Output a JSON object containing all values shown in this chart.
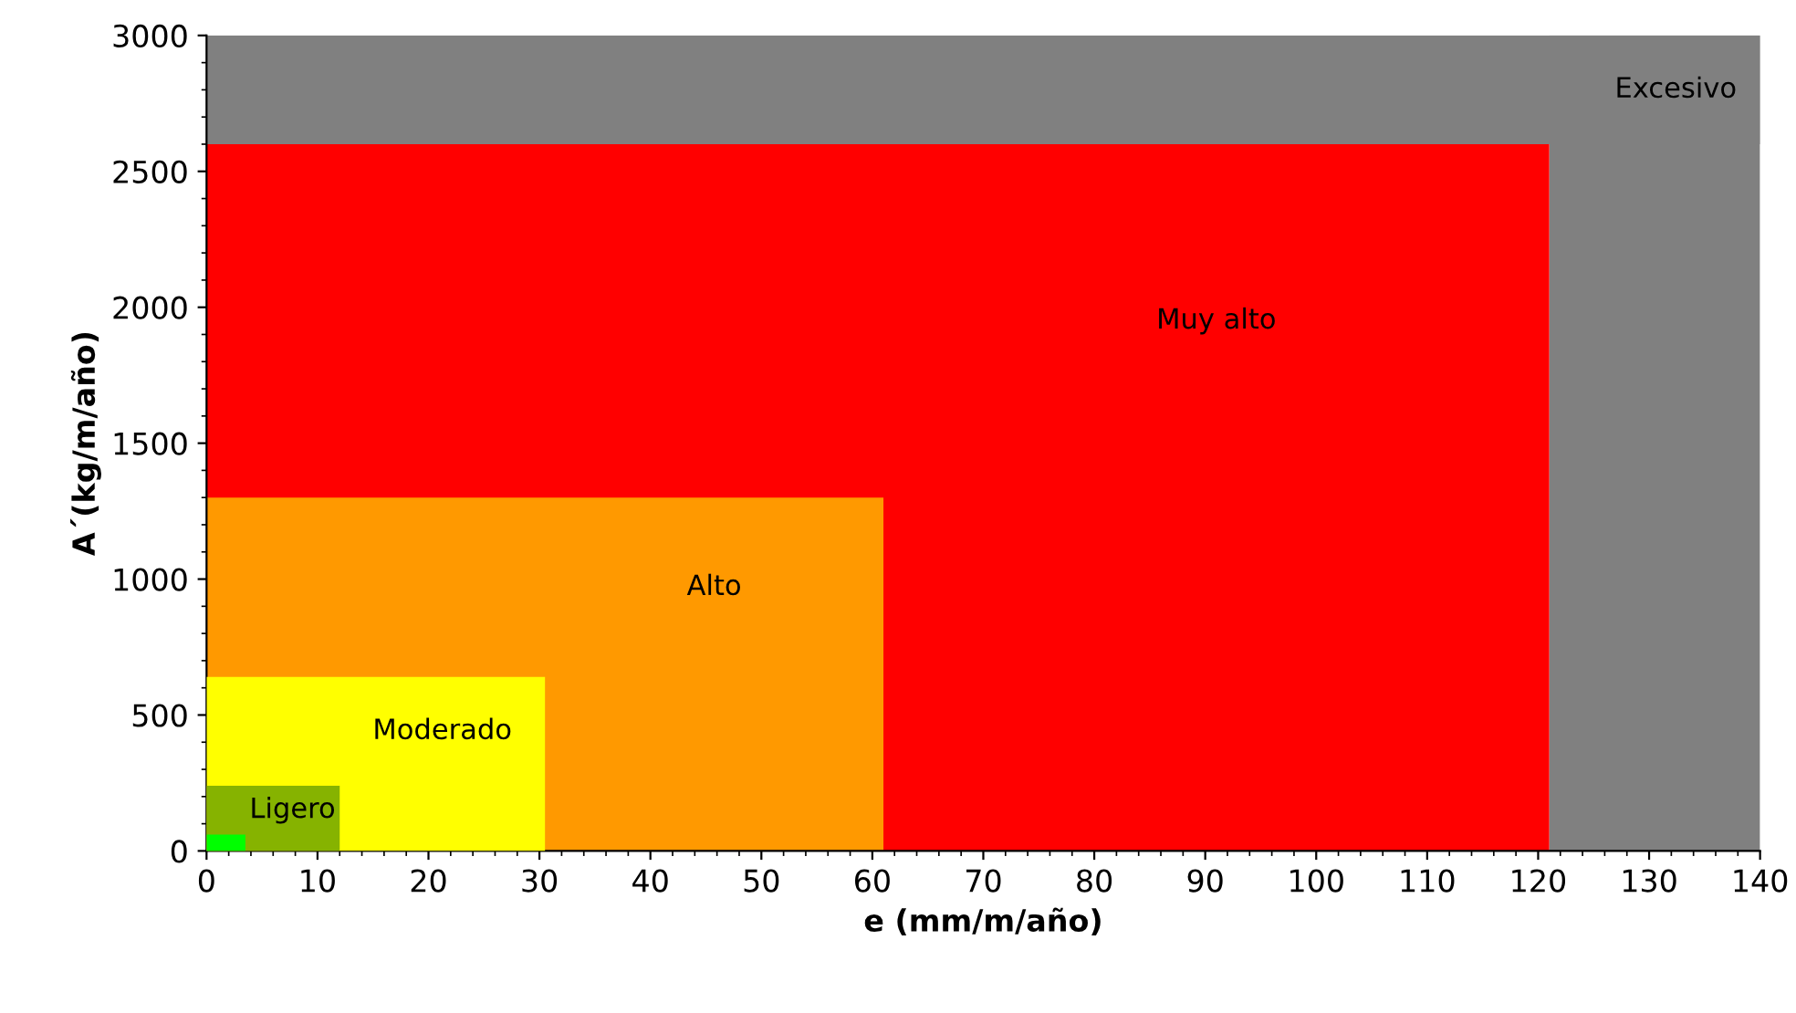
{
  "chart_data": {
    "type": "area",
    "xlabel": "e (mm/m/año)",
    "ylabel": "A´(kg/m/año)",
    "xlim": [
      0,
      140
    ],
    "ylim": [
      0,
      3000
    ],
    "xticks": [
      0,
      10,
      20,
      30,
      40,
      50,
      60,
      70,
      80,
      90,
      100,
      110,
      120,
      130,
      140
    ],
    "yticks": [
      0,
      500,
      1000,
      1500,
      2000,
      2500,
      3000
    ],
    "grid": false,
    "bands": [
      {
        "axis": "y",
        "from": 2600,
        "to": 3000,
        "label": "Excesivo",
        "color": "#808080"
      },
      {
        "axis": "x",
        "from": 121,
        "to": 140,
        "color": "#808080"
      }
    ],
    "series": [
      {
        "name": "Muy alto",
        "color": "#ff0000",
        "x": [
          0,
          121
        ],
        "values": [
          2600,
          2600
        ]
      },
      {
        "name": "Alto",
        "color": "#ff9900",
        "x": [
          0,
          61
        ],
        "values": [
          1300,
          1300
        ]
      },
      {
        "name": "Moderado",
        "color": "#ffff00",
        "x": [
          0,
          30.5
        ],
        "values": [
          640,
          640
        ]
      },
      {
        "name": "Ligero",
        "color": "#86b300",
        "x": [
          0,
          12
        ],
        "values": [
          240,
          240
        ]
      },
      {
        "color": "#00ff00",
        "x": [
          0,
          3.5
        ],
        "values": [
          60,
          60
        ]
      }
    ]
  }
}
